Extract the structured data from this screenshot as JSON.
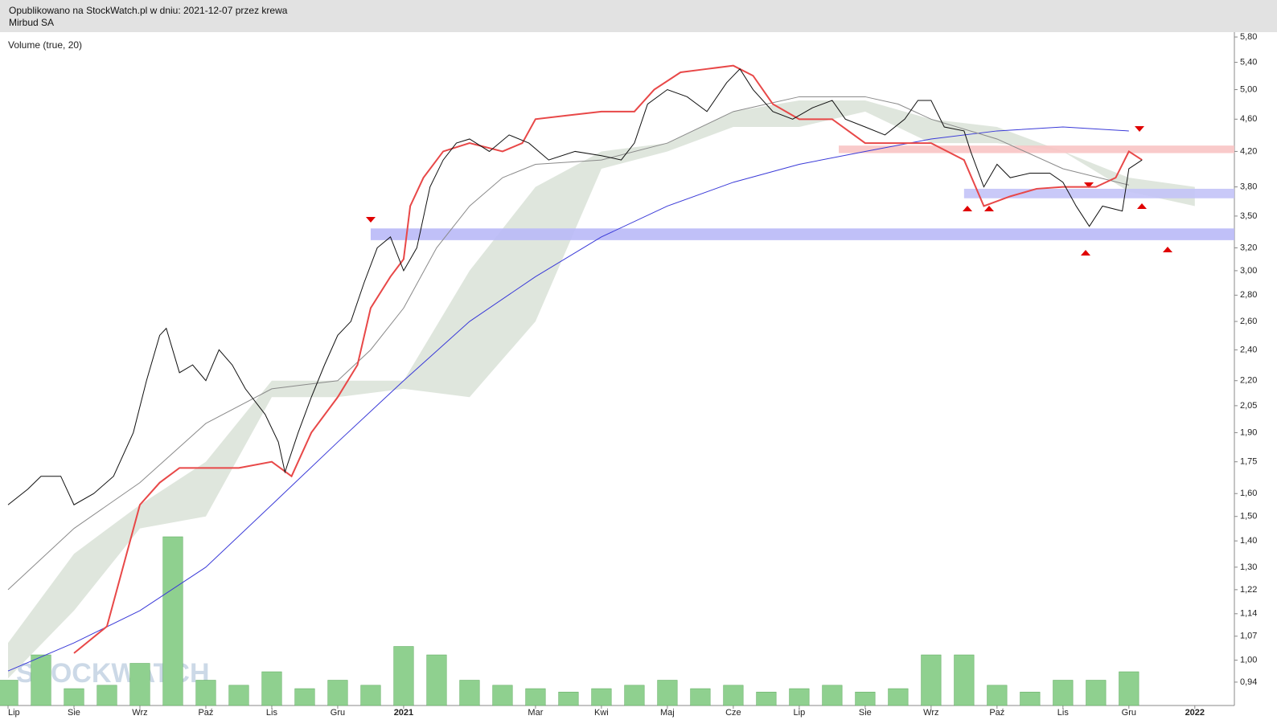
{
  "header": {
    "published": "Opublikowano na StockWatch.pl w dniu: 2021-12-07 przez krewa",
    "name": "Mirbud SA"
  },
  "watermark": "STOCKWATCH",
  "chart_data": {
    "type": "line",
    "title": "Volume (true, 20)",
    "log_y": true,
    "xlim": [
      0,
      18.6
    ],
    "ylim": [
      0.88,
      5.88
    ],
    "y2lim": [
      0,
      100
    ],
    "xticks": [
      {
        "value": 0,
        "label": "Lip"
      },
      {
        "value": 1,
        "label": "Sie"
      },
      {
        "value": 2,
        "label": "Wrz"
      },
      {
        "value": 3,
        "label": "Paź"
      },
      {
        "value": 4,
        "label": "Lis"
      },
      {
        "value": 5,
        "label": "Gru"
      },
      {
        "value": 6,
        "label": "2021"
      },
      {
        "value": 8,
        "label": "Mar"
      },
      {
        "value": 9,
        "label": "Kwi"
      },
      {
        "value": 10,
        "label": "Maj"
      },
      {
        "value": 11,
        "label": "Cze"
      },
      {
        "value": 12,
        "label": "Lip"
      },
      {
        "value": 13,
        "label": "Sie"
      },
      {
        "value": 14,
        "label": "Wrz"
      },
      {
        "value": 15,
        "label": "Paź"
      },
      {
        "value": 16,
        "label": "Lis"
      },
      {
        "value": 17,
        "label": "Gru"
      },
      {
        "value": 18,
        "label": "2022"
      }
    ],
    "yticks": [
      {
        "value": 5.8,
        "label": "5,80"
      },
      {
        "value": 5.4,
        "label": "5,40"
      },
      {
        "value": 5,
        "label": "5,00"
      },
      {
        "value": 4.6,
        "label": "4,60"
      },
      {
        "value": 4.2,
        "label": "4,20"
      },
      {
        "value": 3.8,
        "label": "3,80"
      },
      {
        "value": 3.5,
        "label": "3,50"
      },
      {
        "value": 3.2,
        "label": "3,20"
      },
      {
        "value": 3,
        "label": "3,00"
      },
      {
        "value": 2.8,
        "label": "2,80"
      },
      {
        "value": 2.6,
        "label": "2,60"
      },
      {
        "value": 2.4,
        "label": "2,40"
      },
      {
        "value": 2.2,
        "label": "2,20"
      },
      {
        "value": 2.05,
        "label": "2,05"
      },
      {
        "value": 1.9,
        "label": "1,90"
      },
      {
        "value": 1.75,
        "label": "1,75"
      },
      {
        "value": 1.6,
        "label": "1,60"
      },
      {
        "value": 1.5,
        "label": "1,50"
      },
      {
        "value": 1.4,
        "label": "1,40"
      },
      {
        "value": 1.3,
        "label": "1,30"
      },
      {
        "value": 1.22,
        "label": "1,22"
      },
      {
        "value": 1.14,
        "label": "1,14"
      },
      {
        "value": 1.07,
        "label": "1,07"
      },
      {
        "value": 1,
        "label": "1,00"
      },
      {
        "value": 0.94,
        "label": "0,94"
      }
    ],
    "cloud": {
      "color": "#dfe6dd",
      "x": [
        0,
        1,
        2,
        3,
        4,
        5,
        6,
        7,
        8,
        9,
        10,
        11,
        12,
        13,
        14,
        15,
        16,
        17,
        18
      ],
      "upper": [
        1.05,
        1.35,
        1.55,
        1.75,
        2.2,
        2.2,
        2.2,
        3.0,
        3.8,
        4.2,
        4.3,
        4.7,
        4.85,
        4.85,
        4.6,
        4.5,
        4.2,
        3.9,
        3.8
      ],
      "lower": [
        0.95,
        1.15,
        1.45,
        1.5,
        2.1,
        2.1,
        2.15,
        2.1,
        2.6,
        4.0,
        4.2,
        4.5,
        4.5,
        4.7,
        4.3,
        4.3,
        4.2,
        3.75,
        3.6
      ]
    },
    "zones": [
      {
        "from": 3.27,
        "to": 3.38,
        "x": 5.5,
        "color": "#b9b9f7"
      },
      {
        "from": 3.68,
        "to": 3.78,
        "x": 14.5,
        "color": "#c3c3f7"
      },
      {
        "from": 4.18,
        "to": 4.27,
        "x": 12.6,
        "color": "#f8c4c4"
      }
    ],
    "lines": [
      {
        "color": "#3a3ad8",
        "x": [
          0,
          1,
          2,
          3,
          4,
          5,
          6,
          7,
          8,
          9,
          10,
          11,
          12,
          13,
          14,
          15,
          16,
          17
        ],
        "values": [
          0.97,
          1.05,
          1.15,
          1.3,
          1.55,
          1.85,
          2.2,
          2.6,
          2.95,
          3.3,
          3.6,
          3.85,
          4.05,
          4.2,
          4.35,
          4.45,
          4.5,
          4.45
        ]
      },
      {
        "color": "#8a8a8a",
        "x": [
          0,
          1,
          2,
          3,
          4,
          5,
          5.5,
          6,
          6.5,
          7,
          7.5,
          8,
          9,
          10,
          11,
          12,
          13,
          13.5,
          14,
          15,
          16,
          17
        ],
        "values": [
          1.22,
          1.45,
          1.65,
          1.95,
          2.15,
          2.2,
          2.4,
          2.7,
          3.2,
          3.6,
          3.9,
          4.05,
          4.1,
          4.3,
          4.7,
          4.9,
          4.9,
          4.8,
          4.6,
          4.35,
          4.0,
          3.82
        ]
      },
      {
        "color": "#e84848",
        "x": [
          1,
          1.5,
          2,
          2.3,
          2.6,
          3,
          3.5,
          4,
          4.3,
          4.6,
          5,
          5.3,
          5.5,
          5.8,
          6,
          6.1,
          6.3,
          6.6,
          7,
          7.5,
          7.8,
          8,
          8.5,
          9,
          9.5,
          9.8,
          10.2,
          10.6,
          11,
          11.3,
          11.6,
          12,
          12.5,
          13,
          13.5,
          14,
          14.5,
          14.8,
          15.2,
          15.6,
          16,
          16.5,
          16.8,
          17,
          17.2
        ],
        "values": [
          1.02,
          1.1,
          1.55,
          1.65,
          1.72,
          1.72,
          1.72,
          1.75,
          1.68,
          1.9,
          2.1,
          2.3,
          2.7,
          2.95,
          3.1,
          3.6,
          3.9,
          4.2,
          4.3,
          4.2,
          4.3,
          4.6,
          4.65,
          4.7,
          4.7,
          5.0,
          5.25,
          5.3,
          5.35,
          5.2,
          4.8,
          4.6,
          4.6,
          4.3,
          4.3,
          4.3,
          4.1,
          3.6,
          3.7,
          3.78,
          3.8,
          3.8,
          3.9,
          4.2,
          4.1
        ]
      },
      {
        "color": "#111111",
        "x": [
          0,
          0.3,
          0.5,
          0.8,
          1,
          1.3,
          1.6,
          1.9,
          2.1,
          2.3,
          2.4,
          2.6,
          2.8,
          3,
          3.2,
          3.4,
          3.6,
          3.9,
          4.1,
          4.2,
          4.4,
          4.6,
          4.8,
          5,
          5.2,
          5.4,
          5.6,
          5.8,
          6,
          6.2,
          6.4,
          6.6,
          6.8,
          7,
          7.3,
          7.6,
          7.9,
          8.2,
          8.6,
          9,
          9.3,
          9.5,
          9.7,
          10,
          10.3,
          10.6,
          10.9,
          11.1,
          11.3,
          11.6,
          11.9,
          12.2,
          12.5,
          12.7,
          13,
          13.3,
          13.6,
          13.8,
          14,
          14.2,
          14.5,
          14.6,
          14.8,
          15,
          15.2,
          15.5,
          15.8,
          16,
          16.2,
          16.4,
          16.6,
          16.9,
          17,
          17.2
        ],
        "values": [
          1.55,
          1.62,
          1.68,
          1.68,
          1.55,
          1.6,
          1.68,
          1.9,
          2.2,
          2.5,
          2.55,
          2.25,
          2.3,
          2.2,
          2.4,
          2.3,
          2.15,
          2.0,
          1.85,
          1.7,
          1.9,
          2.1,
          2.3,
          2.5,
          2.6,
          2.9,
          3.2,
          3.3,
          3.0,
          3.2,
          3.8,
          4.1,
          4.3,
          4.35,
          4.2,
          4.4,
          4.3,
          4.1,
          4.2,
          4.15,
          4.1,
          4.3,
          4.8,
          5.0,
          4.9,
          4.7,
          5.1,
          5.3,
          5.0,
          4.7,
          4.6,
          4.75,
          4.85,
          4.6,
          4.5,
          4.4,
          4.6,
          4.85,
          4.85,
          4.5,
          4.45,
          4.2,
          3.8,
          4.05,
          3.9,
          3.95,
          3.95,
          3.85,
          3.6,
          3.4,
          3.6,
          3.55,
          4.0,
          4.1
        ]
      }
    ],
    "volume": {
      "color": "#8fd08f",
      "axis": "y2",
      "x": [
        0,
        0.5,
        1,
        1.5,
        2,
        2.5,
        3,
        3.5,
        4,
        4.5,
        5,
        5.5,
        6,
        6.5,
        7,
        7.5,
        8,
        8.5,
        9,
        9.5,
        10,
        10.5,
        11,
        11.5,
        12,
        12.5,
        13,
        13.5,
        14,
        14.5,
        15,
        15.5,
        16,
        16.5,
        17
      ],
      "values": [
        15,
        30,
        10,
        12,
        25,
        100,
        15,
        12,
        20,
        10,
        15,
        12,
        35,
        30,
        15,
        12,
        10,
        8,
        10,
        12,
        15,
        10,
        12,
        8,
        10,
        12,
        8,
        10,
        30,
        30,
        12,
        8,
        15,
        15,
        20
      ]
    }
  }
}
